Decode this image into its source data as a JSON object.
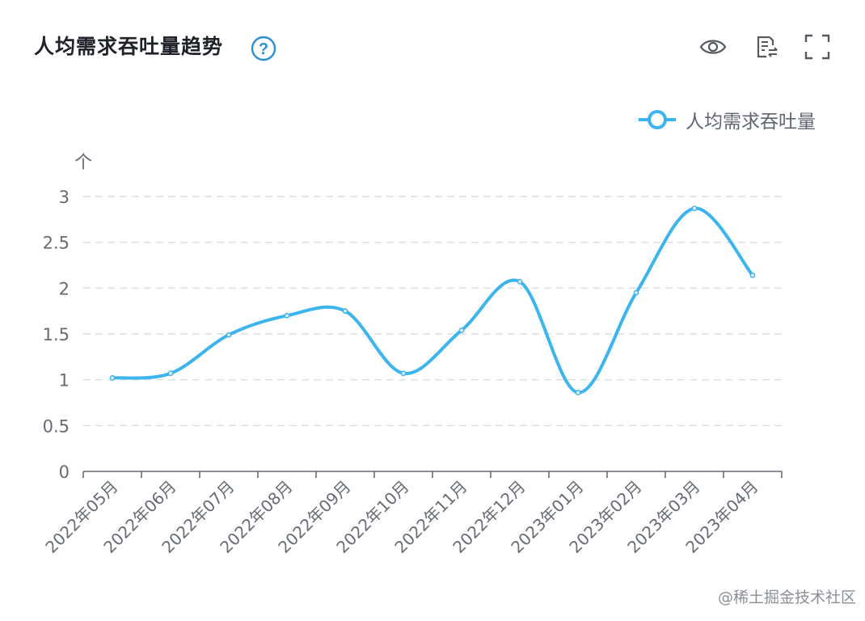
{
  "header": {
    "title": "人均需求吞吐量趋势",
    "help_symbol": "?",
    "icons": [
      "help-icon",
      "eye-icon",
      "table-switch-icon",
      "fullscreen-icon"
    ]
  },
  "colors": {
    "series": "#3cb4ee",
    "grid": "#d9dee3",
    "axis": "#666b73",
    "help": "#2a8fd6"
  },
  "watermark": "@稀土掘金技术社区",
  "chart_data": {
    "type": "line",
    "title": "人均需求吞吐量趋势",
    "ylabel": "个",
    "xlabel": "",
    "ylim": [
      0,
      3
    ],
    "yticks": [
      0,
      0.5,
      1,
      1.5,
      2,
      2.5,
      3
    ],
    "grid": true,
    "smooth": true,
    "legend_position": "top-right",
    "categories": [
      "2022年05月",
      "2022年06月",
      "2022年07月",
      "2022年08月",
      "2022年09月",
      "2022年10月",
      "2022年11月",
      "2022年12月",
      "2023年01月",
      "2023年02月",
      "2023年03月",
      "2023年04月"
    ],
    "series": [
      {
        "name": "人均需求吞吐量",
        "values": [
          1.02,
          1.07,
          1.49,
          1.7,
          1.75,
          1.07,
          1.54,
          2.07,
          0.86,
          1.95,
          2.87,
          2.14
        ]
      }
    ]
  }
}
